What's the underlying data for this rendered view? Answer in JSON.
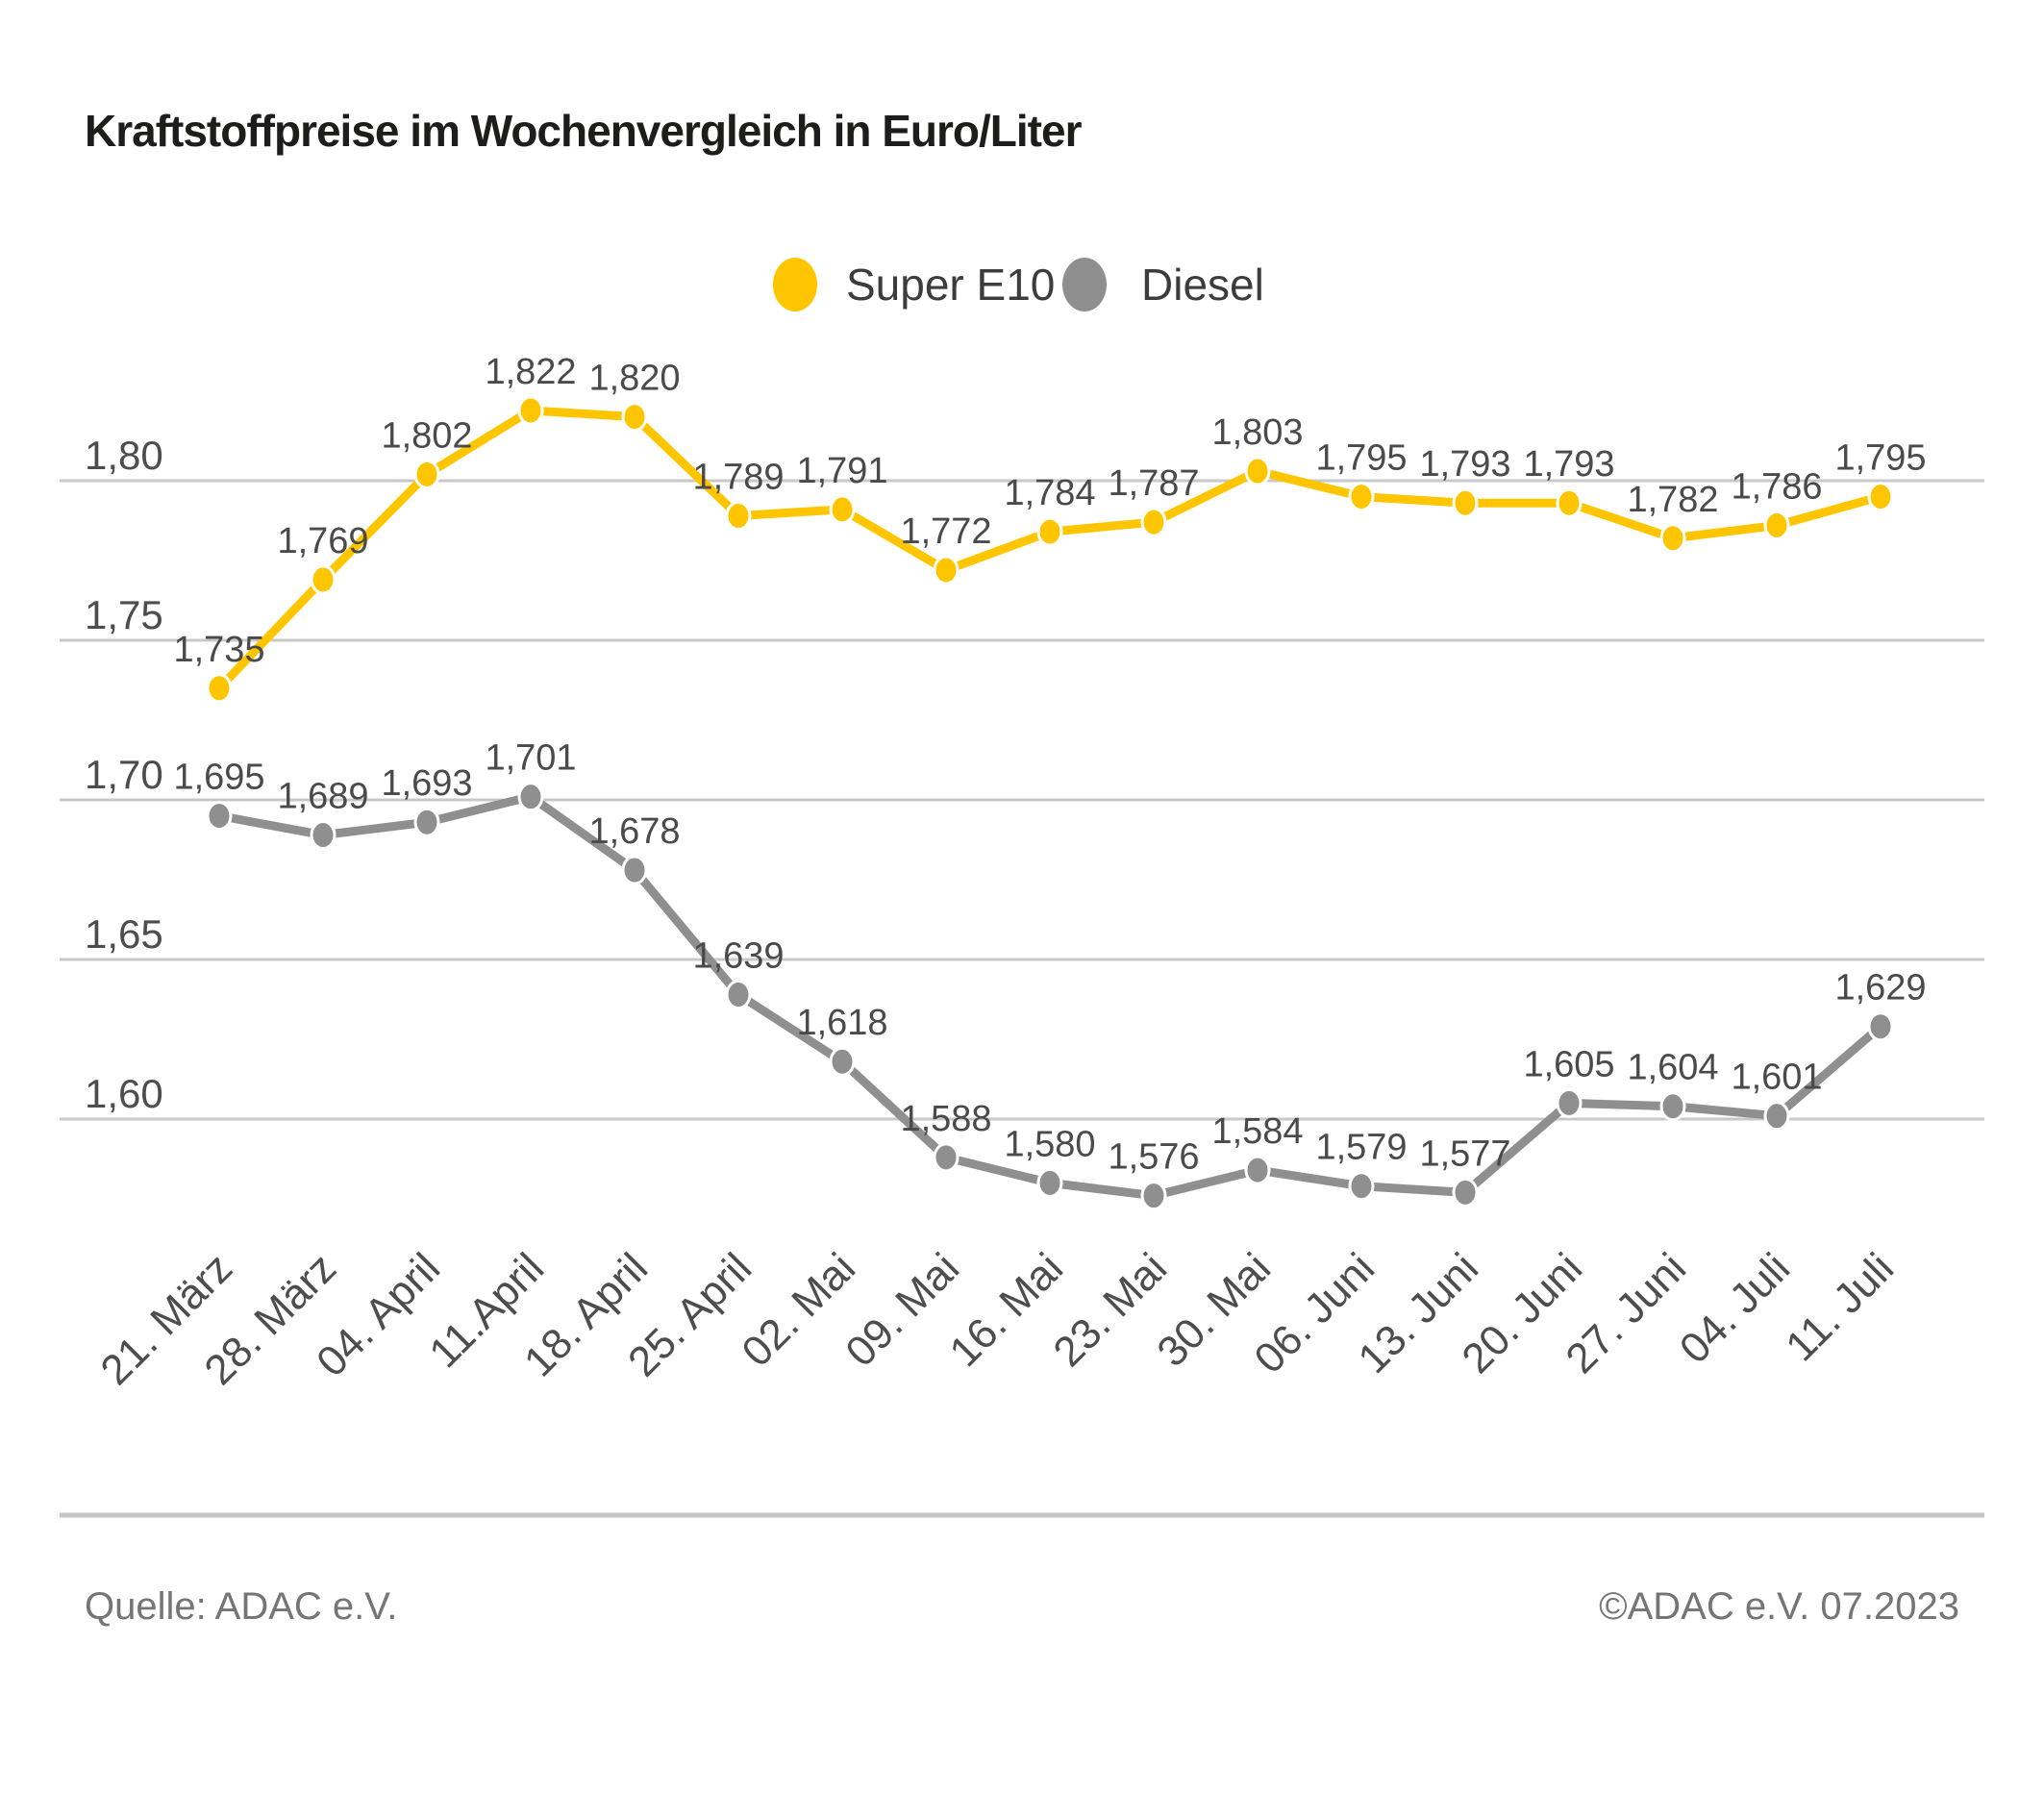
{
  "chart_data": {
    "type": "line",
    "title": "Kraftstoffpreise im Wochenvergleich in Euro/Liter",
    "categories": [
      "21. März",
      "28. März",
      "04. April",
      "11.April",
      "18. April",
      "25. April",
      "02. Mai",
      "09. Mai",
      "16. Mai",
      "23. Mai",
      "30. Mai",
      "06. Juni",
      "13. Juni",
      "20. Juni",
      "27. Juni",
      "04. Juli",
      "11. Juli"
    ],
    "series": [
      {
        "name": "Super E10",
        "color": "#FFC600",
        "values": [
          1.735,
          1.769,
          1.802,
          1.822,
          1.82,
          1.789,
          1.791,
          1.772,
          1.784,
          1.787,
          1.803,
          1.795,
          1.793,
          1.793,
          1.782,
          1.786,
          1.795
        ]
      },
      {
        "name": "Diesel",
        "color": "#8F8F8F",
        "values": [
          1.695,
          1.689,
          1.693,
          1.701,
          1.678,
          1.639,
          1.618,
          1.588,
          1.58,
          1.576,
          1.584,
          1.579,
          1.577,
          1.605,
          1.604,
          1.601,
          1.629
        ]
      }
    ],
    "y_axis": {
      "tick_values": [
        1.8,
        1.75,
        1.7,
        1.65,
        1.6
      ],
      "tick_labels": [
        "1,80",
        "1,75",
        "1,70",
        "1,65",
        "1,60"
      ]
    },
    "value_label_decimal_separator": ",",
    "grid": "horizontal",
    "legend_position": "top-center",
    "xlabel": "",
    "ylabel": ""
  },
  "footer": {
    "source": "Quelle: ADAC e.V.",
    "copyright": "©ADAC e.V. 07.2023"
  },
  "colors": {
    "super_e10": "#FFC600",
    "diesel": "#8F8F8F",
    "gridline": "#C8C8C8",
    "value_label_text": "#4A4A4A",
    "axis_text": "#4D4D4D",
    "title_text": "#1D1D1B",
    "footer_text": "#757575",
    "background": "#FFFFFF"
  }
}
